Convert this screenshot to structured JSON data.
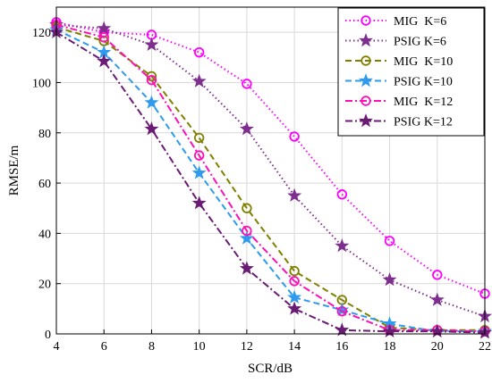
{
  "chart_data": {
    "type": "line",
    "xlabel": "SCR/dB",
    "ylabel": "RMSE/m",
    "xlim": [
      4,
      22
    ],
    "ylim": [
      0,
      130
    ],
    "xticks": [
      "4",
      "6",
      "8",
      "10",
      "12",
      "14",
      "16",
      "18",
      "20",
      "22"
    ],
    "yticks": [
      "0",
      "20",
      "40",
      "60",
      "80",
      "100",
      "120"
    ],
    "grid": true,
    "legend_position": "top-right",
    "x": [
      4,
      6,
      8,
      10,
      12,
      14,
      16,
      18,
      20,
      22
    ],
    "series": [
      {
        "name": "MIG  K=6",
        "color": "#ff00ff",
        "line": "dotted",
        "marker": "circle",
        "values": [
          124,
          120,
          119,
          112,
          99.5,
          78.5,
          55.5,
          37,
          23.5,
          16
        ]
      },
      {
        "name": "PSIG K=6",
        "color": "#7e2f8e",
        "line": "dotted",
        "marker": "star",
        "values": [
          123,
          121.5,
          115,
          100.5,
          81.5,
          55,
          35,
          21.5,
          13.5,
          7
        ]
      },
      {
        "name": "MIG  K=10",
        "color": "#808000",
        "line": "dashed",
        "marker": "circle",
        "values": [
          122,
          116.5,
          102.5,
          78,
          50,
          25,
          13.5,
          2.5,
          1.5,
          1.5
        ]
      },
      {
        "name": "PSIG K=10",
        "color": "#2e9bef",
        "line": "dashed",
        "marker": "star",
        "values": [
          121,
          112,
          92,
          64,
          38,
          14.5,
          9.5,
          4,
          1,
          1
        ]
      },
      {
        "name": "MIG  K=12",
        "color": "#ff0fb5",
        "line": "dashdot",
        "marker": "circle",
        "values": [
          123,
          118,
          101,
          71,
          41,
          21,
          9,
          1.5,
          1.5,
          1
        ]
      },
      {
        "name": "PSIG K=12",
        "color": "#6a1b74",
        "line": "dashdot",
        "marker": "star",
        "values": [
          120,
          108.5,
          81.5,
          52,
          26,
          10,
          1.5,
          1,
          1,
          0.5
        ]
      }
    ]
  }
}
